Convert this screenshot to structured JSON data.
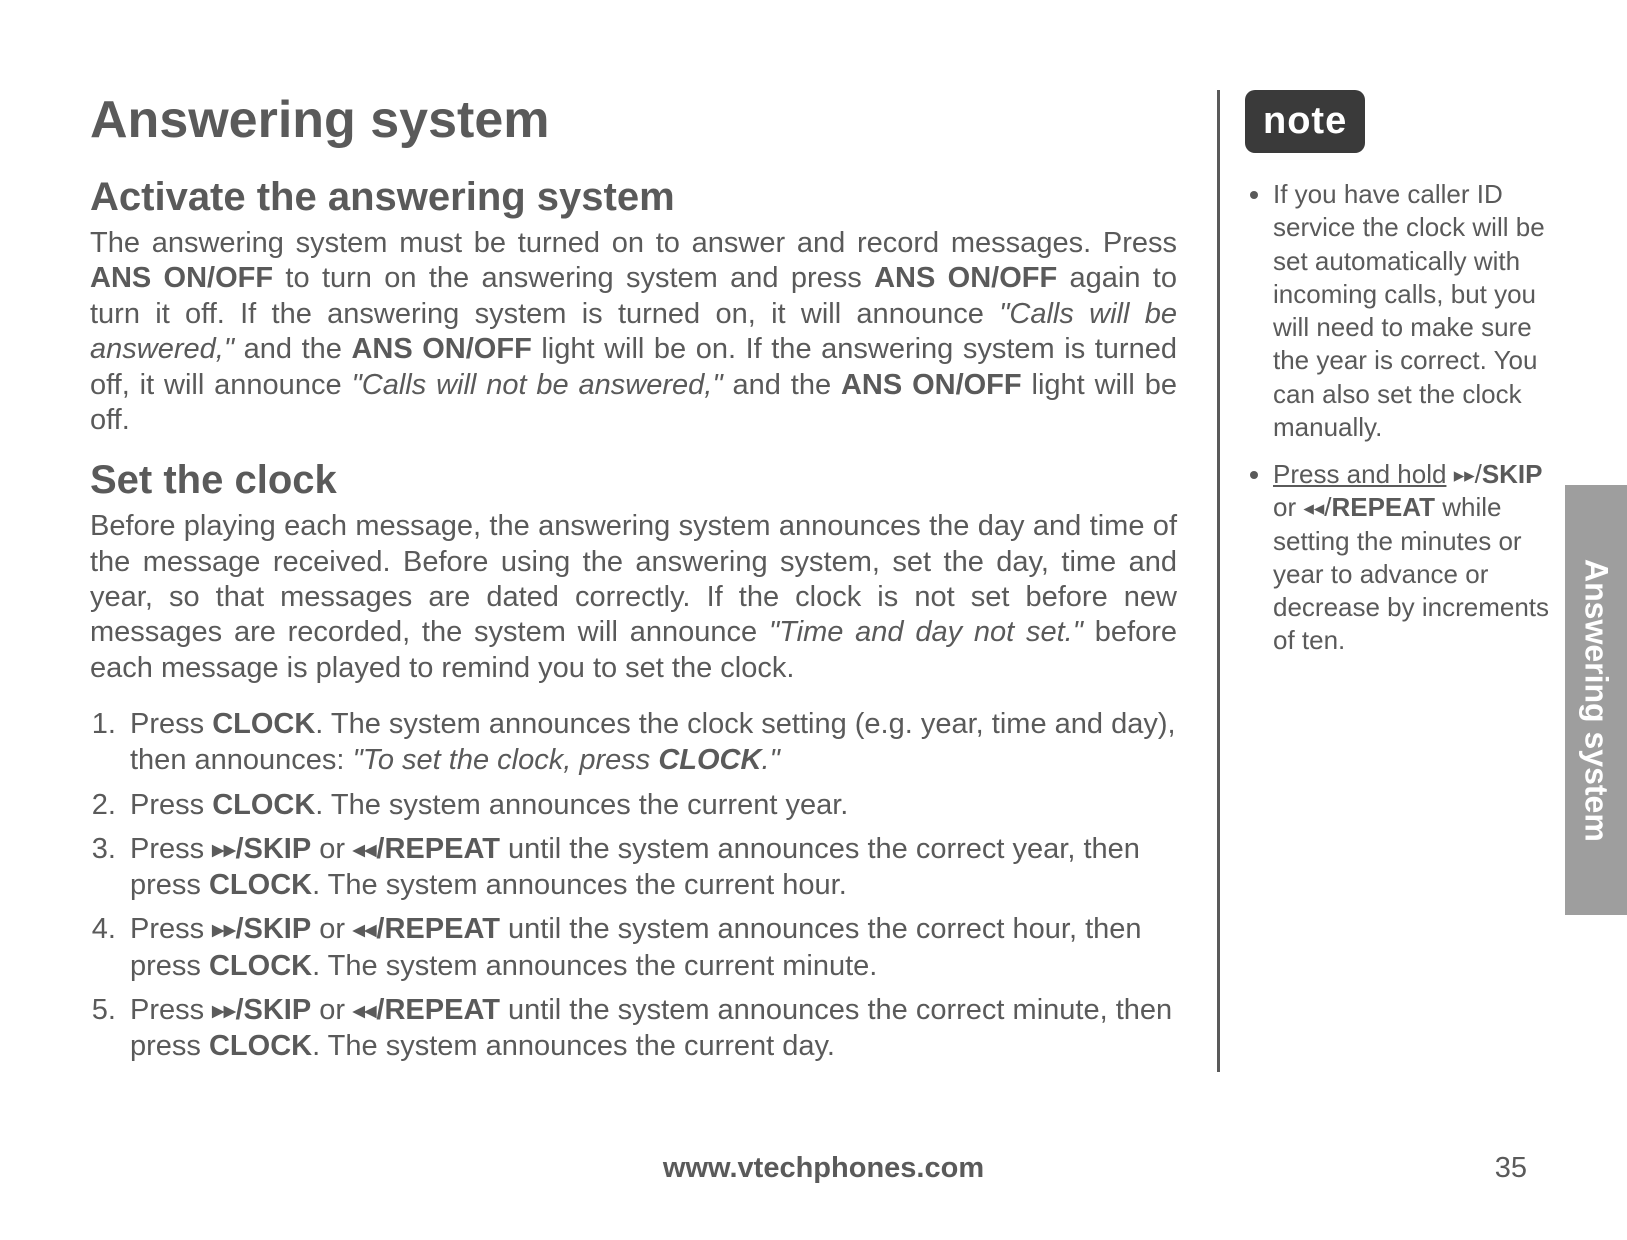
{
  "title": "Answering system",
  "section1": {
    "heading": "Activate the answering system",
    "p1a": "The answering system must be turned on to answer and record messages. Press ",
    "b1": "ANS ON/OFF",
    "p1b": " to turn on the answering system and press ",
    "b2": "ANS ON/OFF",
    "p1c": " again to turn it off. If the answering system is turned on, it will announce ",
    "i1": "\"Calls will be answered,\"",
    "p1d": " and the ",
    "b3": "ANS ON/OFF",
    "p1e": " light will be on. If the answering system is turned off, it will announce ",
    "i2": "\"Calls will not be answered,\"",
    "p1f": " and the ",
    "b4": "ANS ON/OFF",
    "p1g": " light will be off."
  },
  "section2": {
    "heading": "Set the clock",
    "p1": "Before playing each message, the answering system announces the day and time of the message received. Before using the answering system, set the day, time and year, so that messages are dated correctly. If the clock is not set before new messages are recorded, the system will announce ",
    "i1": "\"Time and day not set.\"",
    "p2": " before each message is played to remind you to set the clock."
  },
  "steps": {
    "s1a": "Press ",
    "s1b": "CLOCK",
    "s1c": ". The system announces the clock setting (e.g. year, time and day), then announces: ",
    "s1i": "\"To set the clock, press ",
    "s1ib": "CLOCK",
    "s1ie": ".\"",
    "s2a": "Press ",
    "s2b": "CLOCK",
    "s2c": ". The system announces the current year.",
    "s3a": "Press ",
    "s3skip": "/SKIP",
    "s3mid": " or ",
    "s3rep": "REPEAT",
    "s3b": " until the system announces the correct year, then press ",
    "s3c": "CLOCK",
    "s3d": ". The system announces the current hour.",
    "s4a": "Press ",
    "s4b": " until the system announces the correct hour, then press ",
    "s4c": "CLOCK",
    "s4d": ". The system announces the current minute.",
    "s5a": "Press ",
    "s5b": " until the system announces the correct minute, then press ",
    "s5c": "CLOCK",
    "s5d": ". The system announces the current day."
  },
  "note": {
    "label": "note",
    "n1": "If you have caller ID service the clock will be set automatically with incoming calls, but you will need to make sure the year is correct. You can also set the clock manually.",
    "n2u": "Press and hold",
    "n2skip": "SKIP",
    "n2or": " or ",
    "n2rep": "REPEAT",
    "n2rest": " while setting the minutes or year to advance or decrease by increments of ten."
  },
  "tab": "Answering system",
  "footer_url": "www.vtechphones.com",
  "page_number": "35",
  "glyphs": {
    "skip": "▸▸",
    "repeat": "◂◂",
    "sep": "/"
  }
}
